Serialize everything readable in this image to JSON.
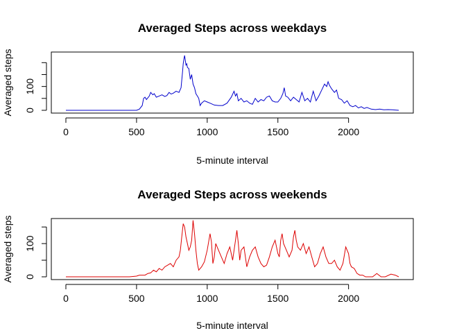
{
  "chart_data": [
    {
      "type": "line",
      "title": "Averaged Steps across weekdays",
      "xlabel": "5-minute interval",
      "ylabel": "Averaged steps",
      "color": "#0000cc",
      "xlim": [
        0,
        2355
      ],
      "ylim": [
        0,
        230
      ],
      "xticks": [
        0,
        500,
        1000,
        1500,
        2000
      ],
      "yticks": [
        0,
        100
      ],
      "x": [
        0,
        100,
        200,
        300,
        400,
        500,
        520,
        540,
        550,
        560,
        570,
        590,
        600,
        615,
        625,
        640,
        660,
        680,
        700,
        715,
        730,
        745,
        760,
        780,
        800,
        815,
        825,
        830,
        835,
        840,
        845,
        850,
        855,
        860,
        870,
        880,
        890,
        900,
        910,
        920,
        930,
        940,
        950,
        960,
        980,
        1000,
        1020,
        1050,
        1080,
        1110,
        1140,
        1170,
        1190,
        1200,
        1210,
        1220,
        1240,
        1260,
        1280,
        1300,
        1320,
        1340,
        1360,
        1380,
        1400,
        1420,
        1440,
        1460,
        1480,
        1500,
        1520,
        1535,
        1545,
        1555,
        1570,
        1590,
        1610,
        1630,
        1650,
        1670,
        1690,
        1710,
        1730,
        1750,
        1770,
        1790,
        1810,
        1830,
        1845,
        1855,
        1865,
        1880,
        1900,
        1915,
        1930,
        1950,
        1970,
        1990,
        2010,
        2030,
        2050,
        2070,
        2090,
        2110,
        2130,
        2160,
        2190,
        2220,
        2250,
        2280,
        2310,
        2355
      ],
      "y": [
        0,
        0,
        0,
        0,
        0,
        0,
        5,
        20,
        50,
        55,
        45,
        60,
        75,
        65,
        70,
        55,
        60,
        65,
        58,
        62,
        75,
        68,
        72,
        80,
        75,
        95,
        160,
        195,
        215,
        230,
        210,
        190,
        195,
        180,
        175,
        130,
        150,
        110,
        95,
        70,
        60,
        50,
        20,
        30,
        40,
        35,
        30,
        22,
        20,
        20,
        30,
        55,
        80,
        60,
        70,
        40,
        50,
        35,
        40,
        30,
        25,
        50,
        35,
        45,
        40,
        55,
        60,
        40,
        35,
        35,
        50,
        70,
        95,
        60,
        55,
        40,
        55,
        45,
        35,
        75,
        40,
        50,
        35,
        80,
        40,
        60,
        85,
        110,
        100,
        120,
        105,
        90,
        75,
        85,
        50,
        45,
        30,
        40,
        20,
        15,
        20,
        10,
        15,
        8,
        12,
        5,
        3,
        5,
        2,
        3,
        2,
        0
      ]
    },
    {
      "type": "line",
      "title": "Averaged Steps across weekends",
      "xlabel": "5-minute interval",
      "ylabel": "Averaged steps",
      "color": "#dd0000",
      "xlim": [
        0,
        2355
      ],
      "ylim": [
        0,
        165
      ],
      "xticks": [
        0,
        500,
        1000,
        1500,
        2000
      ],
      "yticks": [
        0,
        100
      ],
      "x": [
        0,
        100,
        200,
        300,
        400,
        450,
        500,
        520,
        560,
        580,
        600,
        620,
        640,
        660,
        680,
        700,
        720,
        740,
        760,
        780,
        800,
        810,
        820,
        830,
        840,
        850,
        860,
        870,
        880,
        890,
        900,
        910,
        920,
        930,
        940,
        960,
        980,
        1000,
        1020,
        1030,
        1040,
        1050,
        1060,
        1080,
        1100,
        1120,
        1140,
        1160,
        1180,
        1200,
        1210,
        1220,
        1230,
        1240,
        1260,
        1280,
        1300,
        1320,
        1340,
        1360,
        1380,
        1400,
        1420,
        1440,
        1460,
        1480,
        1500,
        1510,
        1520,
        1530,
        1540,
        1560,
        1580,
        1600,
        1610,
        1620,
        1630,
        1640,
        1660,
        1680,
        1700,
        1720,
        1740,
        1760,
        1780,
        1800,
        1820,
        1840,
        1860,
        1880,
        1900,
        1920,
        1940,
        1960,
        1980,
        2000,
        2010,
        2020,
        2040,
        2060,
        2080,
        2100,
        2120,
        2140,
        2170,
        2200,
        2230,
        2260,
        2300,
        2330,
        2355
      ],
      "y": [
        0,
        0,
        0,
        0,
        0,
        0,
        2,
        5,
        5,
        10,
        12,
        20,
        15,
        25,
        20,
        30,
        35,
        40,
        30,
        50,
        60,
        80,
        120,
        160,
        150,
        120,
        100,
        80,
        90,
        110,
        170,
        130,
        80,
        40,
        20,
        30,
        45,
        80,
        130,
        105,
        40,
        60,
        100,
        80,
        60,
        40,
        70,
        90,
        50,
        110,
        140,
        100,
        50,
        80,
        90,
        30,
        60,
        80,
        90,
        60,
        40,
        30,
        35,
        60,
        90,
        110,
        70,
        60,
        110,
        130,
        100,
        80,
        60,
        80,
        120,
        140,
        110,
        90,
        80,
        100,
        70,
        90,
        60,
        30,
        40,
        70,
        90,
        60,
        40,
        40,
        50,
        30,
        20,
        40,
        90,
        70,
        40,
        30,
        25,
        10,
        5,
        5,
        0,
        0,
        0,
        10,
        0,
        0,
        8,
        5,
        0
      ]
    }
  ]
}
